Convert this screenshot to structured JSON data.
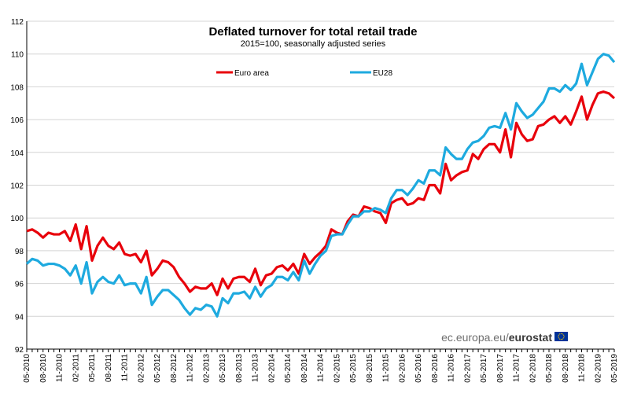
{
  "chart_data": {
    "type": "line",
    "title": "Deflated turnover for total retail trade",
    "subtitle": "2015=100, seasonally adjusted series",
    "xlabel": "",
    "ylabel": "",
    "ylim": [
      92,
      112
    ],
    "yticks": [
      92,
      94,
      96,
      98,
      100,
      102,
      104,
      106,
      108,
      110,
      112
    ],
    "grid": "horizontal",
    "legend_position": "top-center",
    "x_start": "05-2010",
    "x_end": "05-2019",
    "x": [
      "05-2010",
      "06-2010",
      "07-2010",
      "08-2010",
      "09-2010",
      "10-2010",
      "11-2010",
      "12-2010",
      "01-2011",
      "02-2011",
      "03-2011",
      "04-2011",
      "05-2011",
      "06-2011",
      "07-2011",
      "08-2011",
      "09-2011",
      "10-2011",
      "11-2011",
      "12-2011",
      "01-2012",
      "02-2012",
      "03-2012",
      "04-2012",
      "05-2012",
      "06-2012",
      "07-2012",
      "08-2012",
      "09-2012",
      "10-2012",
      "11-2012",
      "12-2012",
      "01-2013",
      "02-2013",
      "03-2013",
      "04-2013",
      "05-2013",
      "06-2013",
      "07-2013",
      "08-2013",
      "09-2013",
      "10-2013",
      "11-2013",
      "12-2013",
      "01-2014",
      "02-2014",
      "03-2014",
      "04-2014",
      "05-2014",
      "06-2014",
      "07-2014",
      "08-2014",
      "09-2014",
      "10-2014",
      "11-2014",
      "12-2014",
      "01-2015",
      "02-2015",
      "03-2015",
      "04-2015",
      "05-2015",
      "06-2015",
      "07-2015",
      "08-2015",
      "09-2015",
      "10-2015",
      "11-2015",
      "12-2015",
      "01-2016",
      "02-2016",
      "03-2016",
      "04-2016",
      "05-2016",
      "06-2016",
      "07-2016",
      "08-2016",
      "09-2016",
      "10-2016",
      "11-2016",
      "12-2016",
      "01-2017",
      "02-2017",
      "03-2017",
      "04-2017",
      "05-2017",
      "06-2017",
      "07-2017",
      "08-2017",
      "09-2017",
      "10-2017",
      "11-2017",
      "12-2017",
      "01-2018",
      "02-2018",
      "03-2018",
      "04-2018",
      "05-2018",
      "06-2018",
      "07-2018",
      "08-2018",
      "09-2018",
      "10-2018",
      "11-2018",
      "12-2018",
      "01-2019",
      "02-2019",
      "03-2019",
      "04-2019",
      "05-2019"
    ],
    "xtick_labels": [
      "05-2010",
      "08-2010",
      "11-2010",
      "02-2011",
      "05-2011",
      "08-2011",
      "11-2011",
      "02-2012",
      "05-2012",
      "08-2012",
      "11-2012",
      "02-2013",
      "05-2013",
      "08-2013",
      "11-2013",
      "02-2014",
      "05-2014",
      "08-2014",
      "11-2014",
      "02-2015",
      "05-2015",
      "08-2015",
      "11-2015",
      "02-2016",
      "05-2016",
      "08-2016",
      "11-2016",
      "02-2017",
      "05-2017",
      "08-2017",
      "11-2017",
      "02-2018",
      "05-2018",
      "08-2018",
      "11-2018",
      "02-2019",
      "05-2019"
    ],
    "series": [
      {
        "name": "Euro area",
        "color": "#e8000b",
        "values": [
          99.2,
          99.3,
          99.1,
          98.8,
          99.1,
          99.0,
          99.0,
          99.2,
          98.6,
          99.6,
          98.1,
          99.5,
          97.4,
          98.3,
          98.8,
          98.3,
          98.1,
          98.5,
          97.8,
          97.7,
          97.8,
          97.3,
          98.0,
          96.5,
          96.9,
          97.4,
          97.3,
          97.0,
          96.4,
          96.0,
          95.5,
          95.8,
          95.7,
          95.7,
          96.0,
          95.3,
          96.3,
          95.7,
          96.3,
          96.4,
          96.4,
          96.1,
          96.9,
          95.9,
          96.5,
          96.6,
          97.0,
          97.1,
          96.8,
          97.2,
          96.6,
          97.8,
          97.2,
          97.6,
          97.9,
          98.3,
          99.3,
          99.1,
          99.0,
          99.8,
          100.2,
          100.1,
          100.7,
          100.6,
          100.4,
          100.3,
          99.7,
          100.9,
          101.1,
          101.2,
          100.8,
          100.9,
          101.2,
          101.1,
          102.0,
          102.0,
          101.5,
          103.3,
          102.3,
          102.6,
          102.8,
          102.9,
          103.9,
          103.6,
          104.2,
          104.5,
          104.5,
          104.0,
          105.4,
          103.7,
          105.8,
          105.1,
          104.7,
          104.8,
          105.6,
          105.7,
          106.0,
          106.2,
          105.8,
          106.2,
          105.7,
          106.5,
          107.4,
          106.0,
          106.9,
          107.6,
          107.7,
          107.6,
          107.3
        ]
      },
      {
        "name": "EU28",
        "color": "#1eaadf",
        "values": [
          97.2,
          97.5,
          97.4,
          97.1,
          97.2,
          97.2,
          97.1,
          96.9,
          96.5,
          97.1,
          96.0,
          97.3,
          95.4,
          96.1,
          96.4,
          96.1,
          96.0,
          96.5,
          95.9,
          96.0,
          96.0,
          95.4,
          96.4,
          94.7,
          95.2,
          95.6,
          95.6,
          95.3,
          95.0,
          94.5,
          94.1,
          94.5,
          94.4,
          94.7,
          94.6,
          94.0,
          95.1,
          94.8,
          95.4,
          95.4,
          95.5,
          95.1,
          95.8,
          95.2,
          95.7,
          95.9,
          96.4,
          96.4,
          96.2,
          96.7,
          96.2,
          97.4,
          96.6,
          97.2,
          97.7,
          98.0,
          98.9,
          99.0,
          99.0,
          99.6,
          100.1,
          100.1,
          100.4,
          100.4,
          100.6,
          100.5,
          100.3,
          101.2,
          101.7,
          101.7,
          101.4,
          101.8,
          102.3,
          102.1,
          102.9,
          102.9,
          102.6,
          104.3,
          103.9,
          103.6,
          103.6,
          104.2,
          104.6,
          104.7,
          105.0,
          105.5,
          105.6,
          105.5,
          106.4,
          105.4,
          107.0,
          106.5,
          106.1,
          106.3,
          106.7,
          107.1,
          107.9,
          107.9,
          107.7,
          108.1,
          107.8,
          108.2,
          109.4,
          108.1,
          108.9,
          109.7,
          110.0,
          109.9,
          109.5
        ]
      }
    ]
  },
  "source": {
    "prefix": "ec.europa.eu/",
    "brand": "eurostat"
  },
  "colors": {
    "gridline": "#d4d4d4",
    "axis": "#000000",
    "flag_blue": "#003399",
    "flag_star": "#ffcc00"
  }
}
